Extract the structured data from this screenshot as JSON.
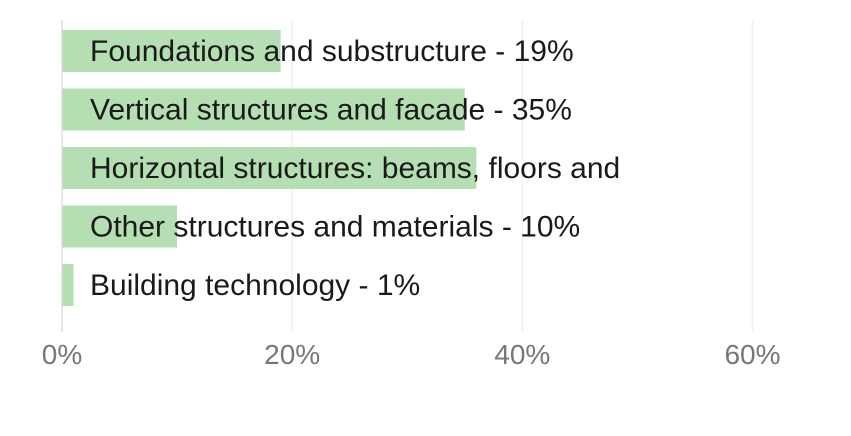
{
  "chart_data": {
    "type": "bar",
    "orientation": "horizontal",
    "categories": [
      "Foundations and substructure - 19%",
      "Vertical structures and facade - 35%",
      "Horizontal structures: beams, floors and",
      "Other structures and materials - 10%",
      "Building technology - 1%"
    ],
    "values": [
      19,
      35,
      36,
      10,
      1
    ],
    "xlim": [
      0,
      65
    ],
    "x_ticks": [
      0,
      20,
      40,
      60
    ],
    "x_tick_labels": [
      "0%",
      "20%",
      "40%",
      "60%"
    ],
    "bar_color": "#b5dfb3",
    "grid_color": "#f0f0f0",
    "grid": true,
    "legend": "none"
  }
}
